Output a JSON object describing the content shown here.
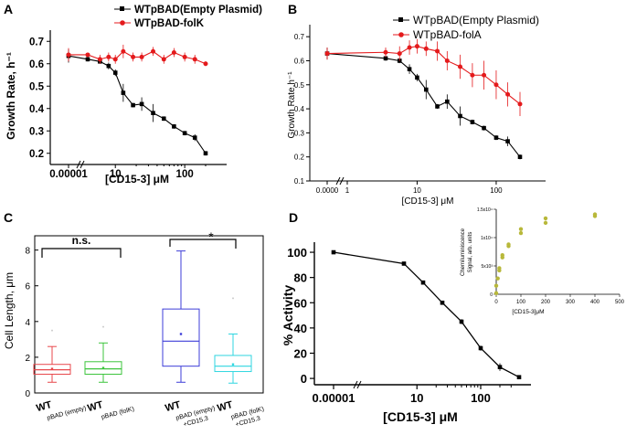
{
  "panels": {
    "A": {
      "letter": "A",
      "ylabel": "Growth Rate, h⁻¹",
      "xlabel": "[CD15-3] μM",
      "yticks": [
        "0.2",
        "0.3",
        "0.4",
        "0.5",
        "0.6",
        "0.7"
      ],
      "xticks": [
        "0.00001",
        "10",
        "100"
      ],
      "legend": [
        "WTpBAD(Empty Plasmid)",
        "WTpBAD-folK"
      ]
    },
    "B": {
      "letter": "B",
      "ylabel": "Growth Rate,h⁻¹",
      "xlabel": "[CD15-3] μM",
      "yticks": [
        "0.1",
        "0.2",
        "0.3",
        "0.4",
        "0.5",
        "0.6",
        "0.7"
      ],
      "xticks": [
        "0.0000",
        "1",
        "10",
        "100"
      ],
      "legend": [
        "WTpBAD(Empty Plasmid)",
        "WTpBAD-folA"
      ]
    },
    "C": {
      "letter": "C",
      "ylabel": "Cell Length, μm",
      "yticks": [
        "0",
        "2",
        "4",
        "6",
        "8"
      ],
      "sig1": "n.s.",
      "sig2": "*",
      "xlabels": [
        {
          "main": "WT",
          "sub": "pBAD (empty)",
          "sub2": ""
        },
        {
          "main": "WT",
          "sub": "pBAD (folK)",
          "sub2": ""
        },
        {
          "main": "WT",
          "sub": "pBAD (empty)",
          "sub2": "+CD15.3"
        },
        {
          "main": "WT",
          "sub": "pBAD (folK)",
          "sub2": "+CD15.3"
        }
      ]
    },
    "D": {
      "letter": "D",
      "ylabel": "% Activity",
      "xlabel": "[CD15-3] μM",
      "yticks": [
        "0",
        "20",
        "40",
        "60",
        "80",
        "100"
      ],
      "xticks": [
        "0.00001",
        "10",
        "100"
      ],
      "inset": {
        "ylabel1": "Chemiluminiscence",
        "ylabel2": "Signal, arb. units",
        "xlabel": "[CD15-3]μM",
        "xticks": [
          "0",
          "100",
          "200",
          "300",
          "400",
          "500"
        ],
        "yticks": [
          "0",
          "5x10³",
          "1x10⁴",
          "1.5x10⁴"
        ]
      }
    }
  },
  "chart_data": [
    {
      "type": "line",
      "panel": "A",
      "xlabel": "[CD15-3] μM",
      "ylabel": "Growth Rate, h⁻¹",
      "xscale": "log (broken axis)",
      "ylim": [
        0.15,
        0.75
      ],
      "series": [
        {
          "name": "WTpBAD(Empty Plasmid)",
          "color": "#000000",
          "x": [
            1e-05,
            4,
            6,
            8,
            10,
            13,
            18,
            24,
            35,
            50,
            70,
            100,
            140,
            200
          ],
          "y": [
            0.635,
            0.62,
            0.61,
            0.59,
            0.56,
            0.47,
            0.415,
            0.42,
            0.38,
            0.355,
            0.32,
            0.29,
            0.27,
            0.2
          ],
          "err": [
            0.03,
            0.01,
            0.01,
            0.015,
            0.015,
            0.04,
            0.01,
            0.03,
            0.04,
            0.01,
            0.01,
            0.01,
            0.015,
            0.01
          ]
        },
        {
          "name": "WTpBAD-folK",
          "color": "#e41a1c",
          "x": [
            1e-05,
            4,
            6,
            8,
            10,
            13,
            18,
            24,
            35,
            50,
            70,
            100,
            140,
            200
          ],
          "y": [
            0.64,
            0.64,
            0.62,
            0.63,
            0.62,
            0.655,
            0.63,
            0.63,
            0.655,
            0.62,
            0.65,
            0.63,
            0.62,
            0.6
          ],
          "err": [
            0.03,
            0.005,
            0.02,
            0.02,
            0.02,
            0.03,
            0.02,
            0.02,
            0.02,
            0.02,
            0.02,
            0.02,
            0.02,
            0.01
          ]
        }
      ]
    },
    {
      "type": "line",
      "panel": "B",
      "xlabel": "[CD15-3] μM",
      "ylabel": "Growth Rate,h⁻¹",
      "xscale": "log (broken axis)",
      "ylim": [
        0.1,
        0.75
      ],
      "series": [
        {
          "name": "WTpBAD(Empty Plasmid)",
          "color": "#000000",
          "x": [
            1e-05,
            4,
            6,
            8,
            10,
            13,
            18,
            24,
            35,
            50,
            70,
            100,
            140,
            200
          ],
          "y": [
            0.63,
            0.61,
            0.6,
            0.565,
            0.53,
            0.48,
            0.41,
            0.43,
            0.37,
            0.345,
            0.32,
            0.28,
            0.265,
            0.2
          ],
          "err": [
            0.025,
            0.01,
            0.01,
            0.02,
            0.015,
            0.04,
            0.01,
            0.03,
            0.04,
            0.01,
            0.01,
            0.01,
            0.02,
            0.01
          ]
        },
        {
          "name": "WTpBAD-folA",
          "color": "#e41a1c",
          "x": [
            1e-05,
            4,
            6,
            8,
            10,
            13,
            18,
            24,
            35,
            50,
            70,
            100,
            140,
            200
          ],
          "y": [
            0.63,
            0.635,
            0.63,
            0.655,
            0.66,
            0.65,
            0.64,
            0.6,
            0.575,
            0.54,
            0.54,
            0.5,
            0.46,
            0.42
          ],
          "err": [
            0.025,
            0.02,
            0.03,
            0.03,
            0.03,
            0.03,
            0.04,
            0.04,
            0.05,
            0.05,
            0.06,
            0.06,
            0.05,
            0.05
          ]
        }
      ]
    },
    {
      "type": "box",
      "panel": "C",
      "ylabel": "Cell Length, μm",
      "ylim": [
        0,
        8.8
      ],
      "categories": [
        "WT pBAD (empty)",
        "WT pBAD (folK)",
        "WT pBAD (empty) +CD15.3",
        "WT pBAD (folK) +CD15.3"
      ],
      "boxes": [
        {
          "color": "#e8474b",
          "min": 0.6,
          "q1": 1.05,
          "median": 1.3,
          "q3": 1.6,
          "max": 2.6,
          "mean": 1.35,
          "outlier": 3.5
        },
        {
          "color": "#3cc43c",
          "min": 0.6,
          "q1": 1.05,
          "median": 1.35,
          "q3": 1.75,
          "max": 2.8,
          "mean": 1.4,
          "outlier": 3.7
        },
        {
          "color": "#3d3dd8",
          "min": 0.6,
          "q1": 1.5,
          "median": 2.9,
          "q3": 4.7,
          "max": 7.95,
          "mean": 3.3,
          "outlier": null
        },
        {
          "color": "#2fd6e0",
          "min": 0.55,
          "q1": 1.2,
          "median": 1.5,
          "q3": 2.1,
          "max": 3.3,
          "mean": 1.6,
          "outlier": 5.3
        }
      ]
    },
    {
      "type": "line",
      "panel": "D",
      "xlabel": "[CD15-3] μM",
      "ylabel": "% Activity",
      "xscale": "log (broken axis)",
      "ylim": [
        -5,
        108
      ],
      "series": [
        {
          "name": "",
          "color": "#000000",
          "x": [
            1e-05,
            6.25,
            12.5,
            25,
            50,
            100,
            200,
            400
          ],
          "y": [
            100,
            91,
            76,
            60,
            45,
            24,
            9,
            1
          ],
          "err": [
            0,
            1,
            1,
            1.5,
            2,
            2,
            3,
            1
          ]
        }
      ]
    },
    {
      "type": "scatter",
      "panel": "D inset",
      "xlabel": "[CD15-3]μM",
      "ylabel": "Chemiluminiscence Signal, arb. units",
      "xlim": [
        0,
        500
      ],
      "ylim": [
        0,
        15000
      ],
      "color": "#b8b83a",
      "x": [
        0,
        0,
        6.25,
        12.5,
        12.5,
        25,
        25,
        50,
        50,
        100,
        100,
        200,
        200,
        400,
        400
      ],
      "y": [
        200,
        1500,
        2800,
        4200,
        4600,
        6500,
        6900,
        8500,
        8800,
        10800,
        11500,
        12600,
        13400,
        13800,
        14100
      ]
    }
  ]
}
